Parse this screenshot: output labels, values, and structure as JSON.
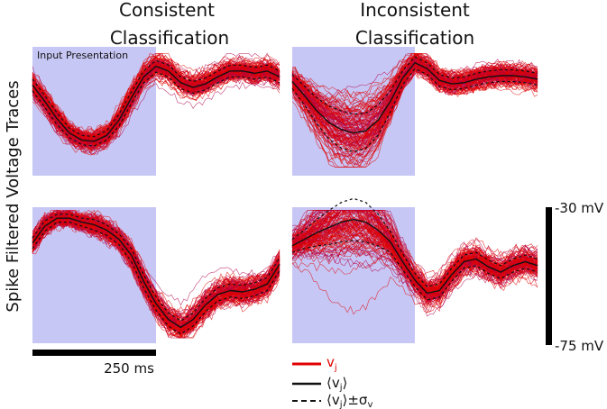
{
  "chart_data": {
    "type": "line",
    "ylabel": "Spike Filtered Voltage Traces",
    "column_titles": [
      {
        "line1": "Consistent",
        "line2": "Classification"
      },
      {
        "line1": "Inconsistent",
        "line2": "Classification"
      }
    ],
    "input_label": "Input Presentation",
    "time_scale_label": "250 ms",
    "voltage_scale": {
      "top": "-30 mV",
      "bottom": "-75 mV"
    },
    "legend": {
      "trace_label": "v",
      "trace_sub": "j",
      "mean_label": "⟨v",
      "mean_sub": "j",
      "mean_close": "⟩",
      "band_label": "⟨v",
      "band_sub": "j",
      "band_close": "⟩±σ",
      "band_sub2": "v"
    },
    "x_normalized_time": [
      0.0,
      0.05,
      0.1,
      0.15,
      0.2,
      0.25,
      0.3,
      0.35,
      0.4,
      0.45,
      0.5,
      0.55,
      0.6,
      0.65,
      0.7,
      0.75,
      0.8,
      0.85,
      0.9,
      0.95,
      1.0
    ],
    "panels": [
      {
        "id": "consistent-top",
        "mean": [
          0.72,
          0.58,
          0.43,
          0.31,
          0.25,
          0.24,
          0.29,
          0.42,
          0.61,
          0.79,
          0.88,
          0.84,
          0.74,
          0.7,
          0.73,
          0.79,
          0.84,
          0.84,
          0.82,
          0.84,
          0.79
        ],
        "std": [
          0.05,
          0.05,
          0.05,
          0.04,
          0.04,
          0.04,
          0.04,
          0.05,
          0.05,
          0.05,
          0.05,
          0.05,
          0.05,
          0.05,
          0.05,
          0.05,
          0.05,
          0.05,
          0.05,
          0.05,
          0.05
        ],
        "traces": 120
      },
      {
        "id": "consistent-bottom",
        "mean": [
          0.74,
          0.87,
          0.93,
          0.93,
          0.9,
          0.88,
          0.84,
          0.77,
          0.65,
          0.45,
          0.28,
          0.16,
          0.1,
          0.16,
          0.27,
          0.35,
          0.38,
          0.37,
          0.39,
          0.43,
          0.58
        ],
        "std": [
          0.04,
          0.04,
          0.03,
          0.03,
          0.03,
          0.04,
          0.04,
          0.04,
          0.05,
          0.05,
          0.05,
          0.05,
          0.05,
          0.05,
          0.05,
          0.05,
          0.05,
          0.05,
          0.05,
          0.05,
          0.05
        ],
        "traces": 120
      },
      {
        "id": "inconsistent-top",
        "mean": [
          0.75,
          0.63,
          0.5,
          0.4,
          0.34,
          0.31,
          0.33,
          0.42,
          0.58,
          0.78,
          0.91,
          0.86,
          0.76,
          0.73,
          0.74,
          0.77,
          0.79,
          0.8,
          0.8,
          0.79,
          0.77
        ],
        "std": [
          0.06,
          0.08,
          0.11,
          0.14,
          0.16,
          0.16,
          0.15,
          0.13,
          0.09,
          0.06,
          0.05,
          0.05,
          0.05,
          0.05,
          0.05,
          0.05,
          0.05,
          0.05,
          0.05,
          0.05,
          0.05
        ],
        "traces": 120
      },
      {
        "id": "inconsistent-bottom",
        "mean": [
          0.72,
          0.77,
          0.82,
          0.86,
          0.9,
          0.92,
          0.9,
          0.84,
          0.75,
          0.6,
          0.46,
          0.36,
          0.38,
          0.5,
          0.6,
          0.62,
          0.56,
          0.52,
          0.57,
          0.6,
          0.57
        ],
        "std": [
          0.05,
          0.07,
          0.1,
          0.13,
          0.15,
          0.16,
          0.15,
          0.12,
          0.08,
          0.06,
          0.05,
          0.05,
          0.05,
          0.05,
          0.05,
          0.05,
          0.05,
          0.05,
          0.05,
          0.05,
          0.05
        ],
        "traces": 120
      }
    ],
    "colors": {
      "trace": "#e00000",
      "trace_alt": "#b0004a",
      "mean": "#111111",
      "input_region": "#c7c7f5",
      "scale_bar": "#000000"
    }
  }
}
